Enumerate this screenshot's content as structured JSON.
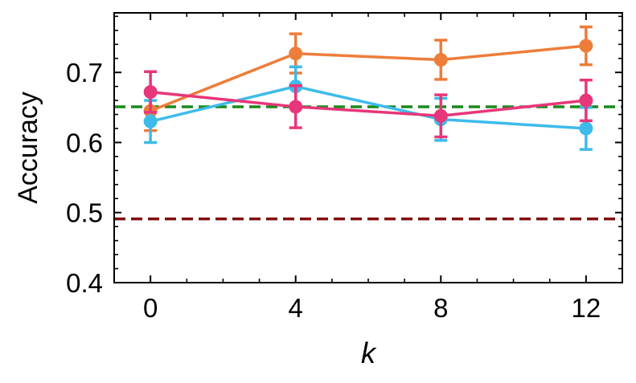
{
  "colors": {
    "orange": "#ED7D3A",
    "cyan": "#3DBBEA",
    "pink": "#E8367A",
    "green_ref": "#1A8A1A",
    "darkred_ref": "#800E0E",
    "axis": "#000000"
  },
  "chart_data": {
    "type": "line",
    "xlabel": "k",
    "ylabel": "Accuracy",
    "xlim": [
      -1,
      13
    ],
    "ylim": [
      0.4,
      0.785
    ],
    "x": [
      0,
      4,
      8,
      12
    ],
    "xticks": [
      0,
      4,
      8,
      12
    ],
    "xtick_labels": [
      "0",
      "4",
      "8",
      "12"
    ],
    "yticks": [
      0.4,
      0.5,
      0.6,
      0.7
    ],
    "ytick_labels": [
      "0.4",
      "0.5",
      "0.6",
      "0.7"
    ],
    "grid": false,
    "series": [
      {
        "color_key": "orange",
        "values": [
          0.645,
          0.727,
          0.718,
          0.738
        ],
        "errors": [
          0.028,
          0.028,
          0.028,
          0.027
        ]
      },
      {
        "color_key": "cyan",
        "values": [
          0.63,
          0.68,
          0.633,
          0.62
        ],
        "errors": [
          0.03,
          0.028,
          0.03,
          0.03
        ]
      },
      {
        "color_key": "pink",
        "values": [
          0.672,
          0.651,
          0.638,
          0.66
        ],
        "errors": [
          0.029,
          0.03,
          0.03,
          0.029
        ]
      }
    ],
    "reference_lines": [
      {
        "y": 0.651,
        "color_key": "green_ref",
        "style": "dashed"
      },
      {
        "y": 0.491,
        "color_key": "darkred_ref",
        "style": "dashed"
      }
    ]
  }
}
